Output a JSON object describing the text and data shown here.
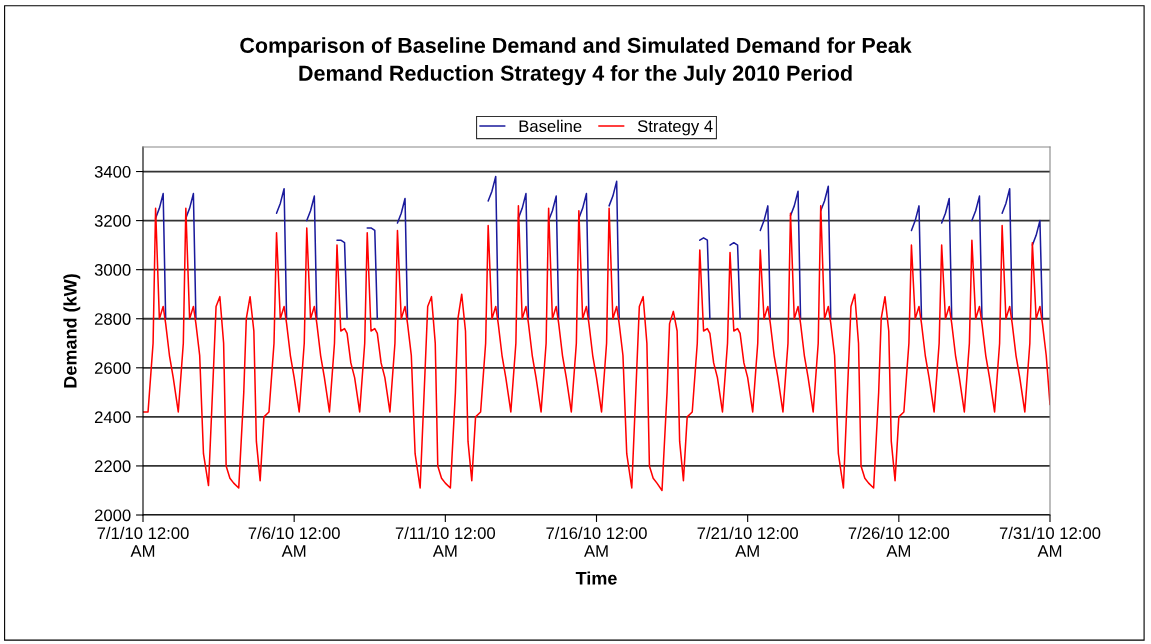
{
  "chart_data": {
    "type": "line",
    "title": "Comparison of Baseline Demand and Simulated Demand for Peak\nDemand Reduction Strategy 4 for the July 2010 Period",
    "xlabel": "Time",
    "ylabel": "Demand (kW)",
    "x": [
      "2010-07-01T00:00",
      "2010-07-01T04:00",
      "2010-07-01T08:00",
      "2010-07-01T10:00",
      "2010-07-01T13:00",
      "2010-07-01T16:00",
      "2010-07-01T18:00",
      "2010-07-01T21:00",
      "2010-07-02T00:00",
      "2010-07-02T04:00",
      "2010-07-02T08:00",
      "2010-07-02T10:00",
      "2010-07-02T13:00",
      "2010-07-02T16:00",
      "2010-07-02T18:00",
      "2010-07-02T21:00",
      "2010-07-03T00:00",
      "2010-07-03T04:00",
      "2010-07-03T08:00",
      "2010-07-03T10:00",
      "2010-07-03T13:00",
      "2010-07-03T16:00",
      "2010-07-03T18:00",
      "2010-07-03T21:00",
      "2010-07-04T00:00",
      "2010-07-04T04:00",
      "2010-07-04T08:00",
      "2010-07-04T10:00",
      "2010-07-04T13:00",
      "2010-07-04T16:00",
      "2010-07-04T18:00",
      "2010-07-04T21:00",
      "2010-07-05T00:00",
      "2010-07-05T04:00",
      "2010-07-05T08:00",
      "2010-07-05T10:00",
      "2010-07-05T13:00",
      "2010-07-05T16:00",
      "2010-07-05T18:00",
      "2010-07-05T21:00",
      "2010-07-06T00:00",
      "2010-07-06T04:00",
      "2010-07-06T08:00",
      "2010-07-06T10:00",
      "2010-07-06T13:00",
      "2010-07-06T16:00",
      "2010-07-06T18:00",
      "2010-07-06T21:00",
      "2010-07-07T00:00",
      "2010-07-07T04:00",
      "2010-07-07T08:00",
      "2010-07-07T10:00",
      "2010-07-07T13:00",
      "2010-07-07T16:00",
      "2010-07-07T18:00",
      "2010-07-07T21:00",
      "2010-07-08T00:00",
      "2010-07-08T04:00",
      "2010-07-08T08:00",
      "2010-07-08T10:00",
      "2010-07-08T13:00",
      "2010-07-08T16:00",
      "2010-07-08T18:00",
      "2010-07-08T21:00",
      "2010-07-09T00:00",
      "2010-07-09T04:00",
      "2010-07-09T08:00",
      "2010-07-09T10:00",
      "2010-07-09T13:00",
      "2010-07-09T16:00",
      "2010-07-09T18:00",
      "2010-07-09T21:00",
      "2010-07-10T00:00",
      "2010-07-10T04:00",
      "2010-07-10T08:00",
      "2010-07-10T10:00",
      "2010-07-10T13:00",
      "2010-07-10T16:00",
      "2010-07-10T18:00",
      "2010-07-10T21:00",
      "2010-07-11T00:00",
      "2010-07-11T04:00",
      "2010-07-11T08:00",
      "2010-07-11T10:00",
      "2010-07-11T13:00",
      "2010-07-11T16:00",
      "2010-07-11T18:00",
      "2010-07-11T21:00",
      "2010-07-12T00:00",
      "2010-07-12T04:00",
      "2010-07-12T08:00",
      "2010-07-12T10:00",
      "2010-07-12T13:00",
      "2010-07-12T16:00",
      "2010-07-12T18:00",
      "2010-07-12T21:00",
      "2010-07-13T00:00",
      "2010-07-13T04:00",
      "2010-07-13T08:00",
      "2010-07-13T10:00",
      "2010-07-13T13:00",
      "2010-07-13T16:00",
      "2010-07-13T18:00",
      "2010-07-13T21:00",
      "2010-07-14T00:00",
      "2010-07-14T04:00",
      "2010-07-14T08:00",
      "2010-07-14T10:00",
      "2010-07-14T13:00",
      "2010-07-14T16:00",
      "2010-07-14T18:00",
      "2010-07-14T21:00",
      "2010-07-15T00:00",
      "2010-07-15T04:00",
      "2010-07-15T08:00",
      "2010-07-15T10:00",
      "2010-07-15T13:00",
      "2010-07-15T16:00",
      "2010-07-15T18:00",
      "2010-07-15T21:00",
      "2010-07-16T00:00",
      "2010-07-16T04:00",
      "2010-07-16T08:00",
      "2010-07-16T10:00",
      "2010-07-16T13:00",
      "2010-07-16T16:00",
      "2010-07-16T18:00",
      "2010-07-16T21:00",
      "2010-07-17T00:00",
      "2010-07-17T04:00",
      "2010-07-17T08:00",
      "2010-07-17T10:00",
      "2010-07-17T13:00",
      "2010-07-17T16:00",
      "2010-07-17T18:00",
      "2010-07-17T21:00",
      "2010-07-18T00:00",
      "2010-07-18T04:00",
      "2010-07-18T08:00",
      "2010-07-18T10:00",
      "2010-07-18T13:00",
      "2010-07-18T16:00",
      "2010-07-18T18:00",
      "2010-07-18T21:00",
      "2010-07-19T00:00",
      "2010-07-19T04:00",
      "2010-07-19T08:00",
      "2010-07-19T10:00",
      "2010-07-19T13:00",
      "2010-07-19T16:00",
      "2010-07-19T18:00",
      "2010-07-19T21:00",
      "2010-07-20T00:00",
      "2010-07-20T04:00",
      "2010-07-20T08:00",
      "2010-07-20T10:00",
      "2010-07-20T13:00",
      "2010-07-20T16:00",
      "2010-07-20T18:00",
      "2010-07-20T21:00",
      "2010-07-21T00:00",
      "2010-07-21T04:00",
      "2010-07-21T08:00",
      "2010-07-21T10:00",
      "2010-07-21T13:00",
      "2010-07-21T16:00",
      "2010-07-21T18:00",
      "2010-07-21T21:00",
      "2010-07-22T00:00",
      "2010-07-22T04:00",
      "2010-07-22T08:00",
      "2010-07-22T10:00",
      "2010-07-22T13:00",
      "2010-07-22T16:00",
      "2010-07-22T18:00",
      "2010-07-22T21:00",
      "2010-07-23T00:00",
      "2010-07-23T04:00",
      "2010-07-23T08:00",
      "2010-07-23T10:00",
      "2010-07-23T13:00",
      "2010-07-23T16:00",
      "2010-07-23T18:00",
      "2010-07-23T21:00",
      "2010-07-24T00:00",
      "2010-07-24T04:00",
      "2010-07-24T08:00",
      "2010-07-24T10:00",
      "2010-07-24T13:00",
      "2010-07-24T16:00",
      "2010-07-24T18:00",
      "2010-07-24T21:00",
      "2010-07-25T00:00",
      "2010-07-25T04:00",
      "2010-07-25T08:00",
      "2010-07-25T10:00",
      "2010-07-25T13:00",
      "2010-07-25T16:00",
      "2010-07-25T18:00",
      "2010-07-25T21:00",
      "2010-07-26T00:00",
      "2010-07-26T04:00",
      "2010-07-26T08:00",
      "2010-07-26T10:00",
      "2010-07-26T13:00",
      "2010-07-26T16:00",
      "2010-07-26T18:00",
      "2010-07-26T21:00",
      "2010-07-27T00:00",
      "2010-07-27T04:00",
      "2010-07-27T08:00",
      "2010-07-27T10:00",
      "2010-07-27T13:00",
      "2010-07-27T16:00",
      "2010-07-27T18:00",
      "2010-07-27T21:00",
      "2010-07-28T00:00",
      "2010-07-28T04:00",
      "2010-07-28T08:00",
      "2010-07-28T10:00",
      "2010-07-28T13:00",
      "2010-07-28T16:00",
      "2010-07-28T18:00",
      "2010-07-28T21:00",
      "2010-07-29T00:00",
      "2010-07-29T04:00",
      "2010-07-29T08:00",
      "2010-07-29T10:00",
      "2010-07-29T13:00",
      "2010-07-29T16:00",
      "2010-07-29T18:00",
      "2010-07-29T21:00",
      "2010-07-30T00:00",
      "2010-07-30T04:00",
      "2010-07-30T08:00",
      "2010-07-30T10:00",
      "2010-07-30T13:00",
      "2010-07-30T16:00",
      "2010-07-30T18:00",
      "2010-07-30T21:00",
      "2010-07-31T00:00"
    ],
    "series": [
      {
        "name": "Baseline",
        "color": "#1a1a9c",
        "values": [
          null,
          null,
          null,
          3210,
          3250,
          3310,
          2800,
          null,
          null,
          null,
          null,
          3210,
          3250,
          3310,
          2800,
          null,
          null,
          null,
          null,
          null,
          null,
          null,
          null,
          null,
          null,
          null,
          null,
          null,
          null,
          null,
          null,
          null,
          null,
          null,
          null,
          3230,
          3270,
          3330,
          2800,
          null,
          null,
          null,
          null,
          3200,
          3240,
          3300,
          2800,
          null,
          null,
          null,
          null,
          3120,
          3120,
          3110,
          2800,
          null,
          null,
          null,
          null,
          3170,
          3170,
          3160,
          2800,
          null,
          null,
          null,
          null,
          3190,
          3230,
          3290,
          2800,
          null,
          null,
          null,
          null,
          null,
          null,
          null,
          null,
          null,
          null,
          null,
          null,
          null,
          null,
          null,
          null,
          null,
          null,
          null,
          null,
          3280,
          3320,
          3380,
          2800,
          null,
          null,
          null,
          null,
          3210,
          3250,
          3310,
          2800,
          null,
          null,
          null,
          null,
          3200,
          3240,
          3300,
          2800,
          null,
          null,
          null,
          null,
          3210,
          3250,
          3310,
          2800,
          null,
          null,
          null,
          null,
          3260,
          3300,
          3360,
          2800,
          null,
          null,
          null,
          null,
          null,
          null,
          null,
          null,
          null,
          null,
          null,
          null,
          null,
          null,
          null,
          null,
          null,
          null,
          null,
          null,
          3120,
          3130,
          3120,
          2800,
          null,
          null,
          null,
          null,
          3100,
          3110,
          3100,
          2800,
          null,
          null,
          null,
          null,
          3160,
          3200,
          3260,
          2800,
          null,
          null,
          null,
          null,
          3220,
          3260,
          3320,
          2800,
          null,
          null,
          null,
          null,
          3240,
          3280,
          3340,
          2800,
          null,
          null,
          null,
          null,
          null,
          null,
          null,
          null,
          null,
          null,
          null,
          null,
          null,
          null,
          null,
          null,
          null,
          null,
          null,
          null,
          3160,
          3200,
          3260,
          2800,
          null,
          null,
          null,
          null,
          3190,
          3230,
          3290,
          2800,
          null,
          null,
          null,
          null,
          3200,
          3240,
          3300,
          2800,
          null,
          null,
          null,
          null,
          3230,
          3270,
          3330,
          2800,
          null,
          null,
          null,
          null,
          3100,
          3140,
          3200,
          2800,
          null,
          null
        ]
      },
      {
        "name": "Strategy 4",
        "color": "#ff0000",
        "values": [
          2420,
          2420,
          2700,
          3250,
          2800,
          2850,
          2780,
          2650,
          2560,
          2420,
          2700,
          3250,
          2800,
          2850,
          2780,
          2650,
          2250,
          2120,
          2600,
          2850,
          2890,
          2700,
          2200,
          2150,
          2130,
          2110,
          2500,
          2800,
          2890,
          2750,
          2300,
          2140,
          2400,
          2420,
          2700,
          3150,
          2800,
          2850,
          2780,
          2650,
          2560,
          2420,
          2700,
          3170,
          2800,
          2850,
          2780,
          2650,
          2560,
          2420,
          2700,
          3100,
          2750,
          2760,
          2740,
          2620,
          2560,
          2420,
          2700,
          3150,
          2750,
          2760,
          2740,
          2620,
          2560,
          2420,
          2700,
          3160,
          2800,
          2850,
          2780,
          2650,
          2250,
          2110,
          2600,
          2850,
          2890,
          2700,
          2200,
          2150,
          2130,
          2110,
          2500,
          2800,
          2900,
          2750,
          2300,
          2140,
          2400,
          2420,
          2700,
          3180,
          2800,
          2850,
          2780,
          2650,
          2560,
          2420,
          2700,
          3260,
          2800,
          2850,
          2780,
          2650,
          2560,
          2420,
          2700,
          3250,
          2800,
          2850,
          2780,
          2650,
          2560,
          2420,
          2700,
          3240,
          2800,
          2850,
          2780,
          2650,
          2560,
          2420,
          2700,
          3250,
          2800,
          2850,
          2780,
          2650,
          2250,
          2110,
          2600,
          2850,
          2890,
          2700,
          2200,
          2150,
          2130,
          2100,
          2500,
          2780,
          2830,
          2750,
          2300,
          2140,
          2400,
          2420,
          2700,
          3080,
          2750,
          2760,
          2740,
          2620,
          2560,
          2420,
          2700,
          3070,
          2750,
          2760,
          2740,
          2620,
          2560,
          2420,
          2700,
          3080,
          2800,
          2850,
          2780,
          2650,
          2560,
          2420,
          2700,
          3230,
          2800,
          2850,
          2780,
          2650,
          2560,
          2420,
          2700,
          3260,
          2800,
          2850,
          2780,
          2650,
          2250,
          2110,
          2600,
          2850,
          2900,
          2700,
          2200,
          2150,
          2130,
          2110,
          2500,
          2800,
          2890,
          2750,
          2300,
          2140,
          2400,
          2420,
          2700,
          3100,
          2800,
          2850,
          2780,
          2650,
          2560,
          2420,
          2700,
          3100,
          2800,
          2850,
          2780,
          2650,
          2560,
          2420,
          2700,
          3120,
          2800,
          2850,
          2780,
          2650,
          2560,
          2420,
          2700,
          3180,
          2800,
          2850,
          2780,
          2650,
          2560,
          2420,
          2700,
          3110,
          2800,
          2850,
          2780,
          2650,
          2450
        ]
      }
    ],
    "xlim": [
      "2010-07-01T00:00",
      "2010-07-31T00:00"
    ],
    "xticks": [
      {
        "value": "2010-07-01T00:00",
        "label": "7/1/10 12:00\nAM"
      },
      {
        "value": "2010-07-06T00:00",
        "label": "7/6/10 12:00\nAM"
      },
      {
        "value": "2010-07-11T00:00",
        "label": "7/11/10 12:00\nAM"
      },
      {
        "value": "2010-07-16T00:00",
        "label": "7/16/10 12:00\nAM"
      },
      {
        "value": "2010-07-21T00:00",
        "label": "7/21/10 12:00\nAM"
      },
      {
        "value": "2010-07-26T00:00",
        "label": "7/26/10 12:00\nAM"
      },
      {
        "value": "2010-07-31T00:00",
        "label": "7/31/10 12:00\nAM"
      }
    ],
    "ylim": [
      2000,
      3500
    ],
    "yticks": [
      2000,
      2200,
      2400,
      2600,
      2800,
      3000,
      3200,
      3400
    ],
    "grid": "y",
    "legend": "top",
    "marker": "none",
    "line_style": "solid"
  }
}
